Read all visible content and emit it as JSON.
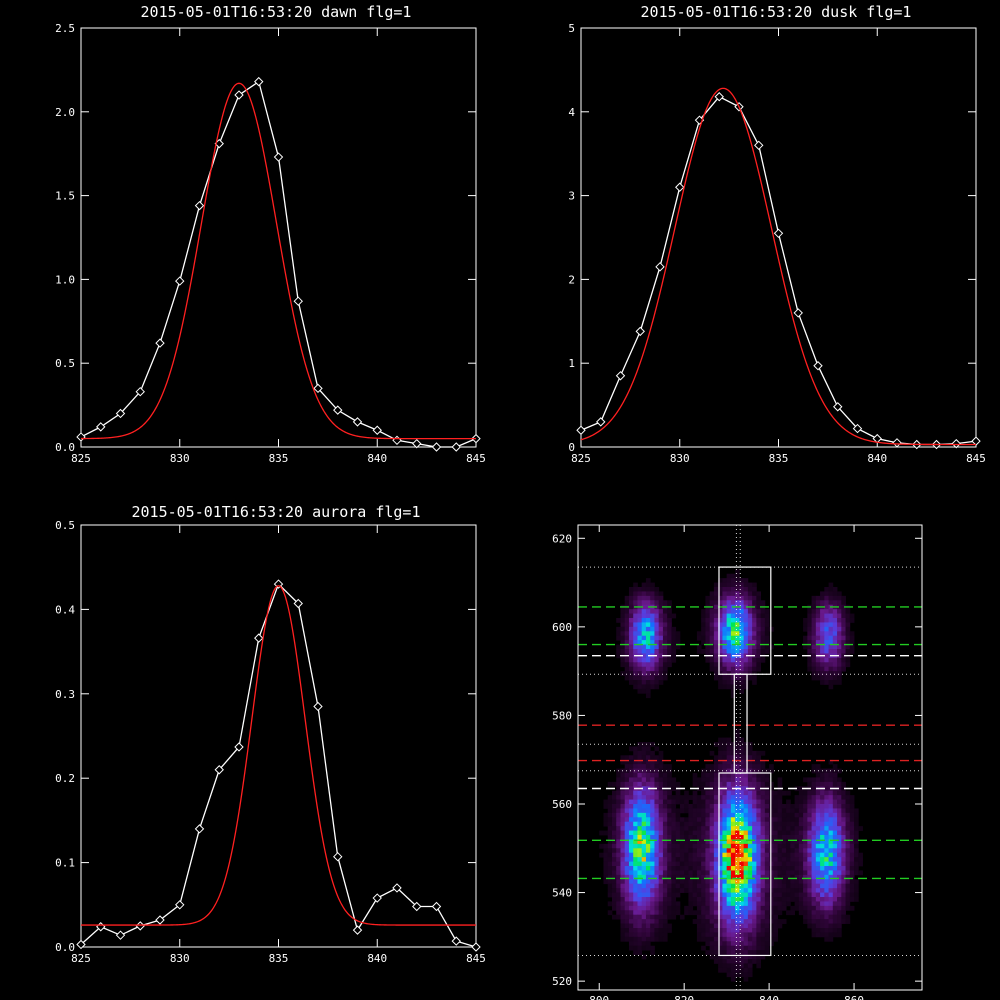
{
  "chart_data": [
    {
      "type": "line",
      "title": "2015-05-01T16:53:20 dawn flg=1",
      "xlim": [
        825,
        845
      ],
      "ylim": [
        0,
        2.5
      ],
      "xticks": [
        "825",
        "830",
        "835",
        "840",
        "845"
      ],
      "yticks": [
        "0.0",
        "0.5",
        "1.0",
        "1.5",
        "2.0",
        "2.5"
      ],
      "series": [
        {
          "color": "#ffffff",
          "marker": "diamond",
          "x": [
            825,
            826,
            827,
            828,
            829,
            830,
            831,
            832,
            833,
            834,
            835,
            836,
            837,
            838,
            839,
            840,
            841,
            842,
            843,
            844,
            845
          ],
          "y": [
            0.06,
            0.12,
            0.2,
            0.33,
            0.62,
            0.99,
            1.44,
            1.81,
            2.1,
            2.18,
            1.73,
            0.87,
            0.35,
            0.22,
            0.15,
            0.1,
            0.04,
            0.02,
            0.0,
            0.0,
            0.05
          ]
        },
        {
          "color": "#ff2020",
          "marker": "none",
          "fit": {
            "kind": "gaussian",
            "amplitude": 2.12,
            "center": 833.0,
            "sigma": 1.9,
            "baseline": 0.05
          }
        }
      ]
    },
    {
      "type": "line",
      "title": "2015-05-01T16:53:20 dusk flg=1",
      "xlim": [
        825,
        845
      ],
      "ylim": [
        0,
        5
      ],
      "xticks": [
        "825",
        "830",
        "835",
        "840",
        "845"
      ],
      "yticks": [
        "0",
        "1",
        "2",
        "3",
        "4",
        "5"
      ],
      "series": [
        {
          "color": "#ffffff",
          "marker": "diamond",
          "x": [
            825,
            826,
            827,
            828,
            829,
            830,
            831,
            832,
            833,
            834,
            835,
            836,
            837,
            838,
            839,
            840,
            841,
            842,
            843,
            844,
            845
          ],
          "y": [
            0.2,
            0.3,
            0.85,
            1.38,
            2.15,
            3.1,
            3.9,
            4.18,
            4.06,
            3.6,
            2.55,
            1.6,
            0.97,
            0.48,
            0.22,
            0.1,
            0.05,
            0.03,
            0.03,
            0.04,
            0.07
          ]
        },
        {
          "color": "#ff2020",
          "marker": "none",
          "fit": {
            "kind": "gaussian",
            "amplitude": 4.25,
            "center": 832.2,
            "sigma": 2.45,
            "baseline": 0.03
          }
        }
      ]
    },
    {
      "type": "line",
      "title": "2015-05-01T16:53:20 aurora flg=1",
      "xlim": [
        825,
        845
      ],
      "ylim": [
        0,
        0.5
      ],
      "xticks": [
        "825",
        "830",
        "835",
        "840",
        "845"
      ],
      "yticks": [
        "0.0",
        "0.1",
        "0.2",
        "0.3",
        "0.4",
        "0.5"
      ],
      "series": [
        {
          "color": "#ffffff",
          "marker": "diamond",
          "x": [
            825,
            826,
            827,
            828,
            829,
            830,
            831,
            832,
            833,
            834,
            835,
            836,
            837,
            838,
            839,
            840,
            841,
            842,
            843,
            844,
            845
          ],
          "y": [
            0.003,
            0.024,
            0.014,
            0.025,
            0.032,
            0.05,
            0.14,
            0.21,
            0.237,
            0.366,
            0.43,
            0.407,
            0.285,
            0.107,
            0.02,
            0.058,
            0.07,
            0.048,
            0.048,
            0.007,
            0.0
          ]
        },
        {
          "color": "#ff2020",
          "marker": "none",
          "fit": {
            "kind": "gaussian",
            "amplitude": 0.402,
            "center": 835.0,
            "sigma": 1.35,
            "baseline": 0.026
          }
        }
      ]
    },
    {
      "type": "heatmap",
      "xlim": [
        795,
        876
      ],
      "ylim": [
        518,
        623
      ],
      "xticks": [
        "800",
        "820",
        "840",
        "860"
      ],
      "yticks": [
        "520",
        "540",
        "560",
        "580",
        "600",
        "620"
      ],
      "blobs": [
        {
          "x": 811,
          "y": 598,
          "sx": 2.2,
          "sy": 4.5,
          "peak": 0.5
        },
        {
          "x": 832,
          "y": 599,
          "sx": 2.4,
          "sy": 4.5,
          "peak": 0.62
        },
        {
          "x": 854,
          "y": 598,
          "sx": 2.2,
          "sy": 4.5,
          "peak": 0.32
        },
        {
          "x": 810,
          "y": 550,
          "sx": 2.6,
          "sy": 8.0,
          "peak": 0.68
        },
        {
          "x": 832.5,
          "y": 548,
          "sx": 2.8,
          "sy": 8.5,
          "peak": 1.0
        },
        {
          "x": 853.5,
          "y": 549,
          "sx": 2.5,
          "sy": 7.0,
          "peak": 0.55
        }
      ],
      "vertical_dotted_lines_x": [
        832.3,
        833.2
      ],
      "horizontal_dotted_lines_y": [
        613.5,
        589.3,
        573.5,
        567.5,
        525.8
      ],
      "dashed_lines": [
        {
          "y": 604.5,
          "color": "#22cc22"
        },
        {
          "y": 596,
          "color": "#22cc22"
        },
        {
          "y": 593.5,
          "color": "#ffffff"
        },
        {
          "y": 577.8,
          "color": "#dd2222"
        },
        {
          "y": 569.8,
          "color": "#dd2222"
        },
        {
          "y": 563.5,
          "color": "#ffffff"
        },
        {
          "y": 551.8,
          "color": "#22cc22"
        },
        {
          "y": 543.2,
          "color": "#22cc22"
        }
      ],
      "boxes": [
        {
          "x0": 828.2,
          "x1": 840.4,
          "y0": 589.3,
          "y1": 613.5
        },
        {
          "x0": 831.8,
          "x1": 834.8,
          "y0": 567.0,
          "y1": 589.3
        },
        {
          "x0": 828.2,
          "x1": 840.4,
          "y0": 525.8,
          "y1": 567.0
        }
      ]
    }
  ]
}
